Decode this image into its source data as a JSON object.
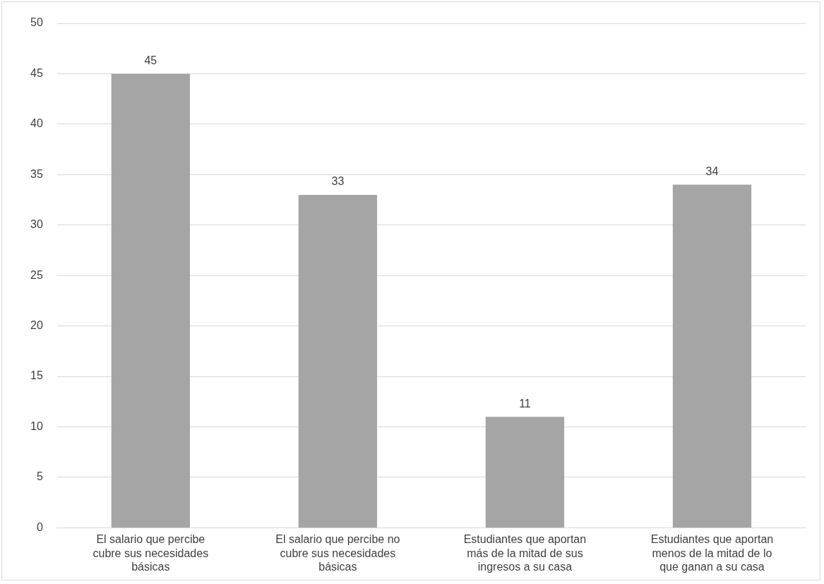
{
  "chart_data": {
    "type": "bar",
    "categories": [
      "El salario que percibe cubre sus necesidades básicas",
      "El salario que percibe no cubre sus necesidades básicas",
      "Estudiantes que aportan más de la mitad de sus ingresos a su casa",
      "Estudiantes que aportan menos de la mitad de lo que ganan a su casa"
    ],
    "values": [
      45,
      33,
      11,
      34
    ],
    "color": "#a5a5a5",
    "ylim": [
      0,
      50
    ],
    "yticks": [
      0,
      5,
      10,
      15,
      20,
      25,
      30,
      35,
      40,
      45,
      50
    ],
    "grid": "y",
    "data_labels": true,
    "legend": false
  }
}
